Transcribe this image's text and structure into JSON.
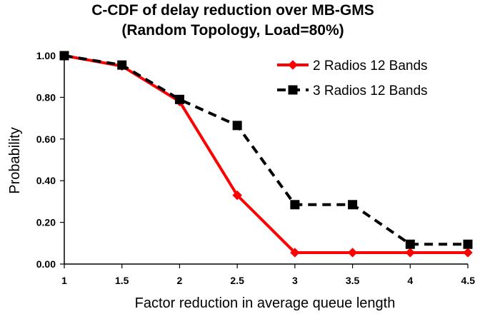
{
  "chart_data": {
    "type": "line",
    "title": "C-CDF of delay reduction over MB-GMS",
    "subtitle": "(Random Topology, Load=80%)",
    "xlabel": "Factor reduction in average queue length",
    "ylabel": "Probability",
    "x": [
      1,
      1.5,
      2,
      2.5,
      3,
      3.5,
      4,
      4.5
    ],
    "x_tick_labels": [
      "1",
      "1.5",
      "2",
      "2.5",
      "3",
      "3.5",
      "4",
      "4.5"
    ],
    "y_tick_labels": [
      "0.00",
      "0.20",
      "0.40",
      "0.60",
      "0.80",
      "1.00"
    ],
    "y_ticks": [
      0,
      0.2,
      0.4,
      0.6,
      0.8,
      1.0
    ],
    "xlim": [
      1,
      4.5
    ],
    "ylim": [
      0,
      1.0
    ],
    "grid": false,
    "legend_position": "top-right",
    "series": [
      {
        "name": "2 Radios 12 Bands",
        "values": [
          1.0,
          0.95,
          0.78,
          0.33,
          0.055,
          0.055,
          0.055,
          0.055
        ],
        "color": "#ff0000",
        "line_style": "solid",
        "marker": "diamond"
      },
      {
        "name": "3 Radios 12 Bands",
        "values": [
          1.0,
          0.955,
          0.79,
          0.665,
          0.285,
          0.285,
          0.095,
          0.095
        ],
        "color": "#000000",
        "line_style": "dashed",
        "marker": "square"
      }
    ]
  }
}
